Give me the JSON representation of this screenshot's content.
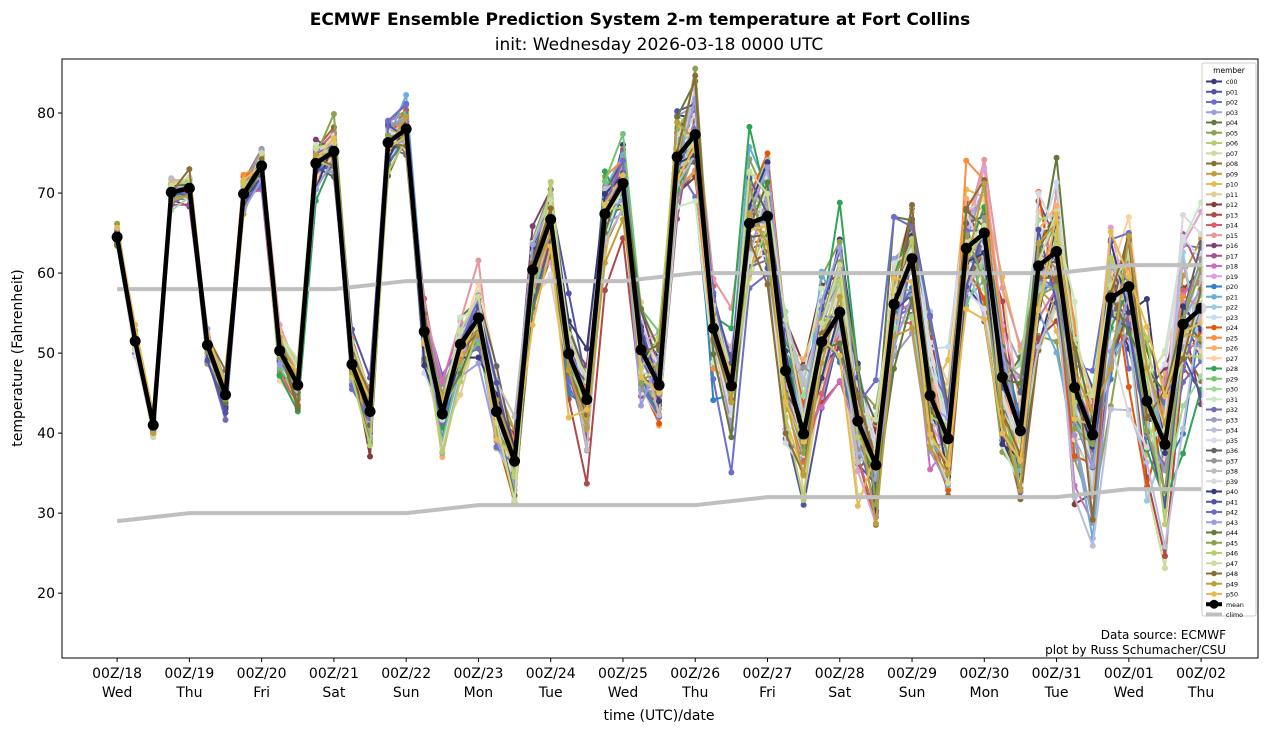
{
  "chart_data": {
    "type": "line",
    "title": "ECMWF Ensemble Prediction System 2-m temperature at Fort Collins",
    "subtitle": "init: Wednesday 2026-03-18 0000 UTC",
    "xlabel": "time (UTC)/date",
    "ylabel": "temperature (Fahrenheit)",
    "x_units": "hours since init (6-hourly)",
    "xlim_hours": [
      -18.3,
      378.9
    ],
    "ylim": [
      11.9,
      86.75
    ],
    "yticks": [
      20,
      30,
      40,
      50,
      60,
      70,
      80
    ],
    "xtick_hours": [
      0,
      24,
      48,
      72,
      96,
      120,
      144,
      168,
      192,
      216,
      240,
      264,
      288,
      312,
      336,
      360
    ],
    "xtick_labels": [
      "00Z/18",
      "00Z/19",
      "00Z/20",
      "00Z/21",
      "00Z/22",
      "00Z/23",
      "00Z/24",
      "00Z/25",
      "00Z/26",
      "00Z/27",
      "00Z/28",
      "00Z/29",
      "00Z/30",
      "00Z/31",
      "00Z/01",
      "00Z/02"
    ],
    "xtick_days": [
      "Wed",
      "Thu",
      "Fri",
      "Sat",
      "Sun",
      "Mon",
      "Tue",
      "Wed",
      "Thu",
      "Fri",
      "Sat",
      "Sun",
      "Mon",
      "Tue",
      "Wed",
      "Thu"
    ],
    "grid": false,
    "legend": {
      "title": "member",
      "placement": "right"
    },
    "mean": {
      "name": "mean",
      "color": "#000000",
      "values": [
        64.5,
        51.5,
        41,
        70.1,
        70.6,
        51,
        44.8,
        69.9,
        73.4,
        50.3,
        46,
        73.7,
        75.2,
        48.6,
        42.7,
        76.3,
        78,
        52.7,
        42.4,
        51.1,
        54.4,
        42.7,
        36.5,
        60.4,
        66.7,
        49.9,
        44.2,
        67.4,
        71.2,
        50.4,
        46,
        74.5,
        77.3,
        53.1,
        45.9,
        66.2,
        67.1,
        47.8,
        39.9,
        51.4,
        55.1,
        41.5,
        36,
        56.1,
        61.8,
        44.7,
        39.3,
        63.1,
        65,
        47,
        40.3,
        60.9,
        62.7,
        45.7,
        39.8,
        56.9,
        58.3,
        44,
        38.6,
        53.6,
        55.6
      ]
    },
    "climo": {
      "name": "climo",
      "color": "#bfbfbf",
      "hours": [
        0,
        24,
        48,
        72,
        96,
        120,
        144,
        168,
        192,
        216,
        240,
        264,
        288,
        312,
        336,
        360
      ],
      "max": [
        58,
        58,
        58,
        58,
        59,
        59,
        59,
        59,
        60,
        60,
        60,
        60,
        60,
        60,
        61,
        61
      ],
      "min": [
        29,
        30,
        30,
        30,
        30,
        31,
        31,
        31,
        31,
        32,
        32,
        32,
        32,
        32,
        33,
        33
      ]
    },
    "members": [
      {
        "name": "c00",
        "color": "#393b79"
      },
      {
        "name": "p01",
        "color": "#5254a3"
      },
      {
        "name": "p02",
        "color": "#6b6ecf"
      },
      {
        "name": "p03",
        "color": "#9c9ede"
      },
      {
        "name": "p04",
        "color": "#637939"
      },
      {
        "name": "p05",
        "color": "#8ca252"
      },
      {
        "name": "p06",
        "color": "#b5cf6b"
      },
      {
        "name": "p07",
        "color": "#cedb9c"
      },
      {
        "name": "p08",
        "color": "#8c6d31"
      },
      {
        "name": "p09",
        "color": "#bd9e39"
      },
      {
        "name": "p10",
        "color": "#e7ba52"
      },
      {
        "name": "p11",
        "color": "#e7cb94"
      },
      {
        "name": "p12",
        "color": "#843c39"
      },
      {
        "name": "p13",
        "color": "#ad494a"
      },
      {
        "name": "p14",
        "color": "#d6616b"
      },
      {
        "name": "p15",
        "color": "#e7969c"
      },
      {
        "name": "p16",
        "color": "#7b4173"
      },
      {
        "name": "p17",
        "color": "#a55194"
      },
      {
        "name": "p18",
        "color": "#ce6dbd"
      },
      {
        "name": "p19",
        "color": "#de9ed6"
      },
      {
        "name": "p20",
        "color": "#3182bd"
      },
      {
        "name": "p21",
        "color": "#6baed6"
      },
      {
        "name": "p22",
        "color": "#9ecae1"
      },
      {
        "name": "p23",
        "color": "#c6dbef"
      },
      {
        "name": "p24",
        "color": "#e6550d"
      },
      {
        "name": "p25",
        "color": "#fd8d3c"
      },
      {
        "name": "p26",
        "color": "#fdae6b"
      },
      {
        "name": "p27",
        "color": "#fdd0a2"
      },
      {
        "name": "p28",
        "color": "#31a354"
      },
      {
        "name": "p29",
        "color": "#74c476"
      },
      {
        "name": "p30",
        "color": "#a1d99b"
      },
      {
        "name": "p31",
        "color": "#c7e9c0"
      },
      {
        "name": "p32",
        "color": "#756bb1"
      },
      {
        "name": "p33",
        "color": "#9e9ac8"
      },
      {
        "name": "p34",
        "color": "#bcbddc"
      },
      {
        "name": "p35",
        "color": "#dadaeb"
      },
      {
        "name": "p36",
        "color": "#636363"
      },
      {
        "name": "p37",
        "color": "#969696"
      },
      {
        "name": "p38",
        "color": "#bdbdbd"
      },
      {
        "name": "p39",
        "color": "#d9d9d9"
      },
      {
        "name": "p40",
        "color": "#393b79"
      },
      {
        "name": "p41",
        "color": "#5254a3"
      },
      {
        "name": "p42",
        "color": "#6b6ecf"
      },
      {
        "name": "p43",
        "color": "#9c9ede"
      },
      {
        "name": "p44",
        "color": "#637939"
      },
      {
        "name": "p45",
        "color": "#8ca252"
      },
      {
        "name": "p46",
        "color": "#b5cf6b"
      },
      {
        "name": "p47",
        "color": "#cedb9c"
      },
      {
        "name": "p48",
        "color": "#8c6d31"
      },
      {
        "name": "p49",
        "color": "#bd9e39"
      },
      {
        "name": "p50",
        "color": "#e7ba52"
      }
    ],
    "annotations": [
      "Data source: ECMWF",
      "plot by Russ Schumacher/CSU"
    ]
  }
}
